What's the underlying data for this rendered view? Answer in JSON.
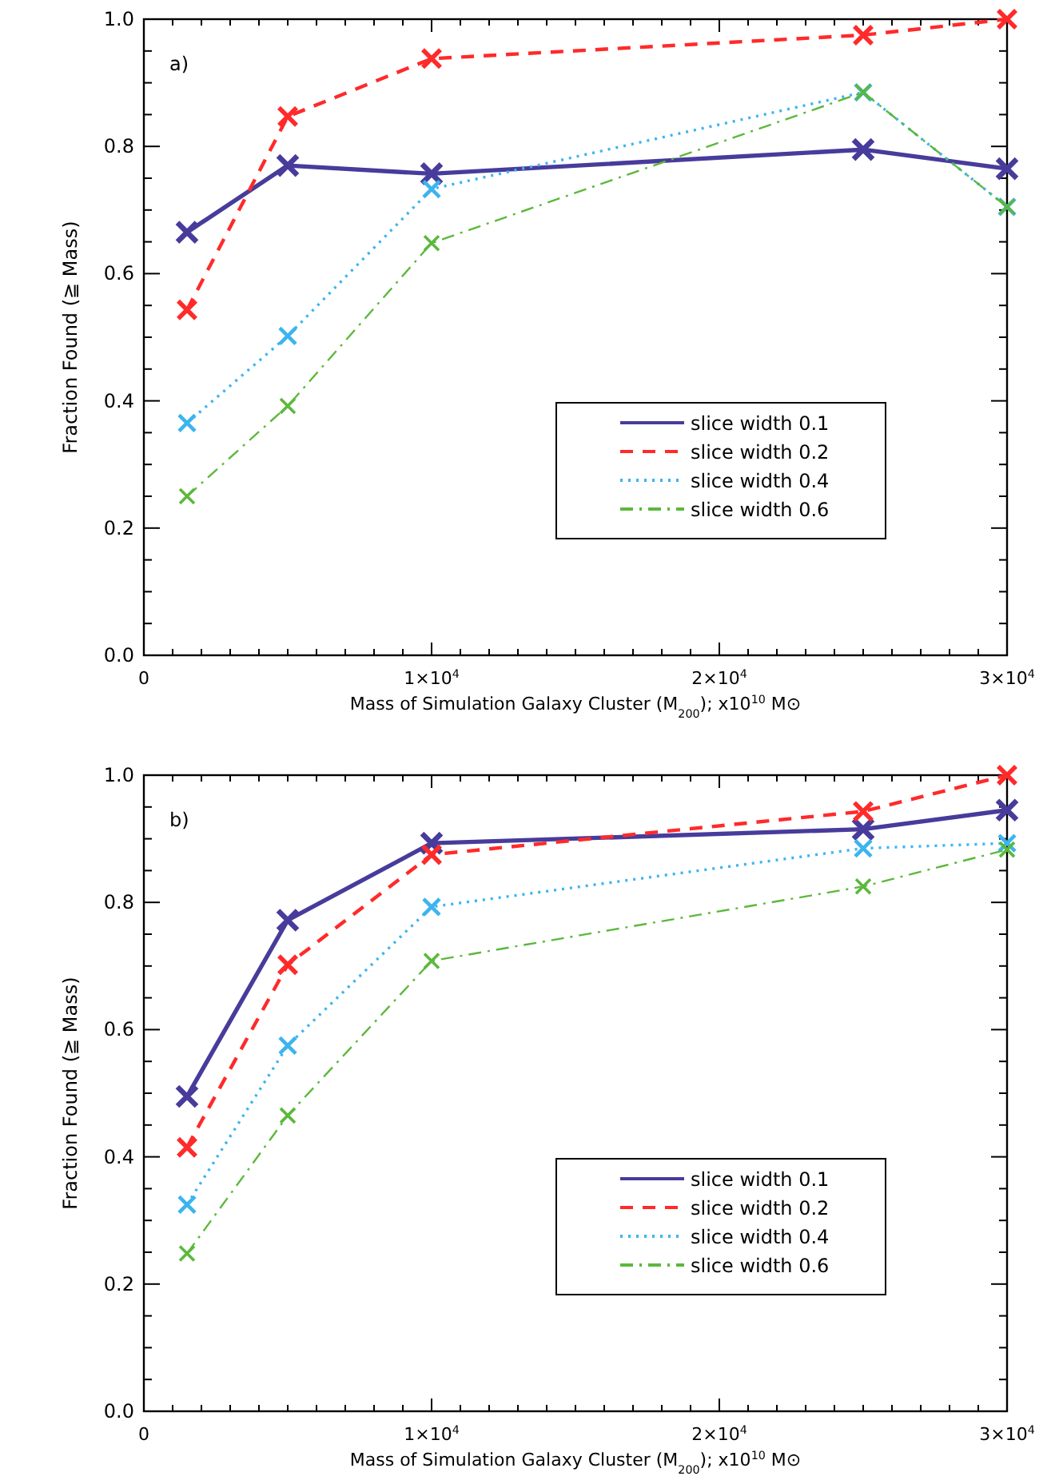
{
  "chart_data": [
    {
      "type": "line",
      "xlabel": "Mass of Simulation Galaxy Cluster (M$_{200}$); x10$^{10}$ M⊙",
      "ylabel": "Fraction Found (≧ Mass)",
      "annotations": [
        "a)"
      ],
      "x": [
        1500,
        5000,
        10000,
        25000,
        30000
      ],
      "series": [
        {
          "name": "slice width 0.1",
          "color": "#473c9b",
          "line_style": "solid",
          "values": [
            0.665,
            0.77,
            0.757,
            0.795,
            0.765
          ]
        },
        {
          "name": "slice width 0.2",
          "color": "#ff2a2a",
          "line_style": "dashed",
          "values": [
            0.543,
            0.847,
            0.938,
            0.975,
            1.0
          ]
        },
        {
          "name": "slice width 0.4",
          "color": "#3cb4ef",
          "line_style": "dotted",
          "values": [
            0.365,
            0.502,
            0.733,
            0.885,
            0.705
          ]
        },
        {
          "name": "slice width 0.6",
          "color": "#5cb83c",
          "line_style": "dashdot",
          "values": [
            0.25,
            0.392,
            0.648,
            0.885,
            0.705
          ]
        }
      ],
      "marker": "cross",
      "legend": "bottom right",
      "grid": false,
      "xlim": [
        0,
        30000
      ],
      "ylim": [
        0,
        1.0
      ],
      "xticks": [
        0,
        {
          "value": 1000,
          "label": null
        },
        {
          "value": 2000,
          "label": null
        },
        {
          "value": 3000,
          "label": null
        },
        {
          "value": 4000,
          "label": null
        },
        {
          "value": 5000,
          "label": null
        },
        {
          "value": 6000,
          "label": null
        },
        {
          "value": 7000,
          "label": null
        },
        {
          "value": 8000,
          "label": null
        },
        {
          "value": 9000,
          "label": null
        },
        {
          "value": 10000,
          "label": "1×10$^{4}$"
        },
        {
          "value": 11000,
          "label": null
        },
        {
          "value": 12000,
          "label": null
        },
        {
          "value": 13000,
          "label": null
        },
        {
          "value": 14000,
          "label": null
        },
        {
          "value": 15000,
          "label": null
        },
        {
          "value": 16000,
          "label": null
        },
        {
          "value": 17000,
          "label": null
        },
        {
          "value": 18000,
          "label": null
        },
        {
          "value": 19000,
          "label": null
        },
        {
          "value": 20000,
          "label": "2×10$^{4}$"
        },
        {
          "value": 21000,
          "label": null
        },
        {
          "value": 22000,
          "label": null
        },
        {
          "value": 23000,
          "label": null
        },
        {
          "value": 24000,
          "label": null
        },
        {
          "value": 25000,
          "label": null
        },
        {
          "value": 26000,
          "label": null
        },
        {
          "value": 27000,
          "label": null
        },
        {
          "value": 28000,
          "label": null
        },
        {
          "value": 29000,
          "label": null
        },
        {
          "value": 30000,
          "label": "3×10$^{4}$"
        }
      ],
      "yticks": [
        {
          "value": 0,
          "label": "0.0"
        },
        {
          "value": 0.05,
          "label": null
        },
        {
          "value": 0.1,
          "label": null
        },
        {
          "value": 0.15,
          "label": null
        },
        {
          "value": 0.2,
          "label": "0.2"
        },
        {
          "value": 0.25,
          "label": null
        },
        {
          "value": 0.3,
          "label": null
        },
        {
          "value": 0.35,
          "label": null
        },
        {
          "value": 0.4,
          "label": "0.4"
        },
        {
          "value": 0.45,
          "label": null
        },
        {
          "value": 0.5,
          "label": null
        },
        {
          "value": 0.55,
          "label": null
        },
        {
          "value": 0.6,
          "label": "0.6"
        },
        {
          "value": 0.65,
          "label": null
        },
        {
          "value": 0.7,
          "label": null
        },
        {
          "value": 0.75,
          "label": null
        },
        {
          "value": 0.8,
          "label": "0.8"
        },
        {
          "value": 0.85,
          "label": null
        },
        {
          "value": 0.9,
          "label": null
        },
        {
          "value": 0.95,
          "label": null
        },
        {
          "value": 1.0,
          "label": "1.0"
        }
      ]
    },
    {
      "type": "line",
      "xlabel": "Mass of Simulation Galaxy Cluster (M$_{200}$); x10$^{10}$ M⊙",
      "ylabel": "Fraction Found (≧ Mass)",
      "annotations": [
        "b)"
      ],
      "x": [
        1500,
        5000,
        10000,
        25000,
        30000
      ],
      "series": [
        {
          "name": "slice width 0.1",
          "color": "#473c9b",
          "line_style": "solid",
          "values": [
            0.495,
            0.772,
            0.893,
            0.915,
            0.945
          ]
        },
        {
          "name": "slice width 0.2",
          "color": "#ff2a2a",
          "line_style": "dashed",
          "values": [
            0.415,
            0.702,
            0.875,
            0.943,
            1.0
          ]
        },
        {
          "name": "slice width 0.4",
          "color": "#3cb4ef",
          "line_style": "dotted",
          "values": [
            0.325,
            0.575,
            0.793,
            0.885,
            0.893
          ]
        },
        {
          "name": "slice width 0.6",
          "color": "#5cb83c",
          "line_style": "dashdot",
          "values": [
            0.248,
            0.465,
            0.708,
            0.825,
            0.883
          ]
        }
      ],
      "marker": "cross",
      "legend": "bottom right",
      "grid": false,
      "xlim": [
        0,
        30000
      ],
      "ylim": [
        0,
        1.0
      ],
      "xticks": [
        0,
        {
          "value": 1000,
          "label": null
        },
        {
          "value": 2000,
          "label": null
        },
        {
          "value": 3000,
          "label": null
        },
        {
          "value": 4000,
          "label": null
        },
        {
          "value": 5000,
          "label": null
        },
        {
          "value": 6000,
          "label": null
        },
        {
          "value": 7000,
          "label": null
        },
        {
          "value": 8000,
          "label": null
        },
        {
          "value": 9000,
          "label": null
        },
        {
          "value": 10000,
          "label": "1×10$^{4}$"
        },
        {
          "value": 11000,
          "label": null
        },
        {
          "value": 12000,
          "label": null
        },
        {
          "value": 13000,
          "label": null
        },
        {
          "value": 14000,
          "label": null
        },
        {
          "value": 15000,
          "label": null
        },
        {
          "value": 16000,
          "label": null
        },
        {
          "value": 17000,
          "label": null
        },
        {
          "value": 18000,
          "label": null
        },
        {
          "value": 19000,
          "label": null
        },
        {
          "value": 20000,
          "label": "2×10$^{4}$"
        },
        {
          "value": 21000,
          "label": null
        },
        {
          "value": 22000,
          "label": null
        },
        {
          "value": 23000,
          "label": null
        },
        {
          "value": 24000,
          "label": null
        },
        {
          "value": 25000,
          "label": null
        },
        {
          "value": 26000,
          "label": null
        },
        {
          "value": 27000,
          "label": null
        },
        {
          "value": 28000,
          "label": null
        },
        {
          "value": 29000,
          "label": null
        },
        {
          "value": 30000,
          "label": "3×10$^{4}$"
        }
      ],
      "yticks": [
        {
          "value": 0,
          "label": "0.0"
        },
        {
          "value": 0.05,
          "label": null
        },
        {
          "value": 0.1,
          "label": null
        },
        {
          "value": 0.15,
          "label": null
        },
        {
          "value": 0.2,
          "label": "0.2"
        },
        {
          "value": 0.25,
          "label": null
        },
        {
          "value": 0.3,
          "label": null
        },
        {
          "value": 0.35,
          "label": null
        },
        {
          "value": 0.4,
          "label": "0.4"
        },
        {
          "value": 0.45,
          "label": null
        },
        {
          "value": 0.5,
          "label": null
        },
        {
          "value": 0.55,
          "label": null
        },
        {
          "value": 0.6,
          "label": "0.6"
        },
        {
          "value": 0.65,
          "label": null
        },
        {
          "value": 0.7,
          "label": null
        },
        {
          "value": 0.75,
          "label": null
        },
        {
          "value": 0.8,
          "label": "0.8"
        },
        {
          "value": 0.85,
          "label": null
        },
        {
          "value": 0.9,
          "label": null
        },
        {
          "value": 0.95,
          "label": null
        },
        {
          "value": 1.0,
          "label": "1.0"
        }
      ]
    }
  ]
}
